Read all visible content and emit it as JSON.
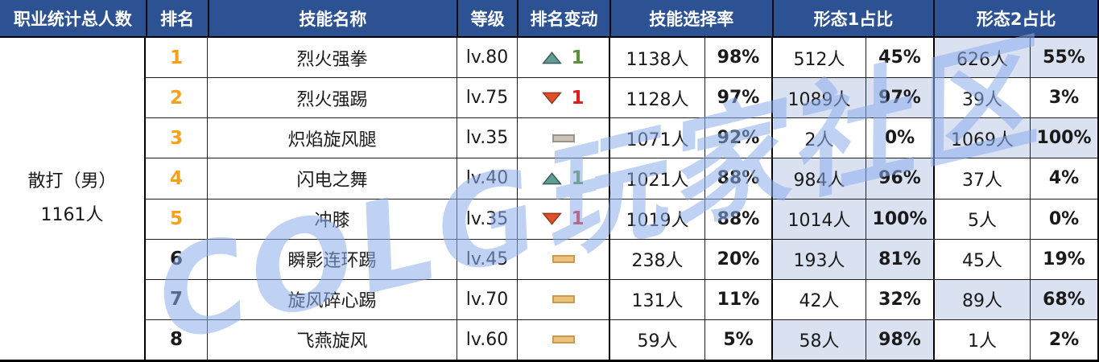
{
  "colors": {
    "header_bg": "#2d5293",
    "header_text": "#ffffff",
    "text": "#1a1a1a",
    "rank_orange": "#f9a01b",
    "highlight_bg": "#dae1f1",
    "up_fill": "#5f9e92",
    "up_stroke": "#3d5a63",
    "down_fill": "#e04f2a",
    "down_stroke": "#8f3c23",
    "flat_fill": "#eac47f",
    "flat_border": "#cd9a4a",
    "flat_grey_fill": "#cdc4b8",
    "flat_grey_border": "#9a958c",
    "green": "#5d8f3c",
    "red": "#e01e1e",
    "watermark": "#8caeec"
  },
  "watermark": "COLG玩家社区",
  "left": {
    "header": "职业统计总人数",
    "class_name": "散打（男）",
    "total": "1161人"
  },
  "header": {
    "rank": "排名",
    "skill": "技能名称",
    "level": "等级",
    "change": "排名变动",
    "selection": "技能选择率",
    "form1": "形态1占比",
    "form2": "形态2占比"
  },
  "chart_data": {
    "type": "table",
    "title": "职业统计总人数 散打（男）1161人 技能选择率统计",
    "columns": [
      "排名",
      "技能名称",
      "等级",
      "排名变动",
      "技能选择率人数",
      "技能选择率%",
      "形态1人数",
      "形态1占比%",
      "形态2人数",
      "形态2占比%"
    ],
    "rows": [
      {
        "rank": "1",
        "rank_orange": true,
        "skill": "烈火强拳",
        "level": "lv.80",
        "change_dir": "up",
        "change_amount": "1",
        "change_variant": "",
        "sel_count": "1138人",
        "sel_pct": "98%",
        "form1_count": "512人",
        "form1_pct": "45%",
        "form1_highlight": false,
        "form2_count": "626人",
        "form2_pct": "55%",
        "form2_highlight": true
      },
      {
        "rank": "2",
        "rank_orange": true,
        "skill": "烈火强踢",
        "level": "lv.75",
        "change_dir": "down",
        "change_amount": "1",
        "change_variant": "",
        "sel_count": "1128人",
        "sel_pct": "97%",
        "form1_count": "1089人",
        "form1_pct": "97%",
        "form1_highlight": true,
        "form2_count": "39人",
        "form2_pct": "3%",
        "form2_highlight": false
      },
      {
        "rank": "3",
        "rank_orange": true,
        "skill": "炽焰旋风腿",
        "level": "lv.35",
        "change_dir": "same",
        "change_amount": "",
        "change_variant": "grey",
        "sel_count": "1071人",
        "sel_pct": "92%",
        "form1_count": "2人",
        "form1_pct": "0%",
        "form1_highlight": false,
        "form2_count": "1069人",
        "form2_pct": "100%",
        "form2_highlight": true
      },
      {
        "rank": "4",
        "rank_orange": true,
        "skill": "闪电之舞",
        "level": "lv.40",
        "change_dir": "up",
        "change_amount": "1",
        "change_variant": "",
        "sel_count": "1021人",
        "sel_pct": "88%",
        "form1_count": "984人",
        "form1_pct": "96%",
        "form1_highlight": true,
        "form2_count": "37人",
        "form2_pct": "4%",
        "form2_highlight": false
      },
      {
        "rank": "5",
        "rank_orange": true,
        "skill": "冲膝",
        "level": "lv.35",
        "change_dir": "down",
        "change_amount": "1",
        "change_variant": "",
        "sel_count": "1019人",
        "sel_pct": "88%",
        "form1_count": "1014人",
        "form1_pct": "100%",
        "form1_highlight": true,
        "form2_count": "5人",
        "form2_pct": "0%",
        "form2_highlight": false
      },
      {
        "rank": "6",
        "rank_orange": false,
        "skill": "瞬影连环踢",
        "level": "lv.45",
        "change_dir": "same",
        "change_amount": "",
        "change_variant": "",
        "sel_count": "238人",
        "sel_pct": "20%",
        "form1_count": "193人",
        "form1_pct": "81%",
        "form1_highlight": true,
        "form2_count": "45人",
        "form2_pct": "19%",
        "form2_highlight": false
      },
      {
        "rank": "7",
        "rank_orange": false,
        "skill": "旋风碎心踢",
        "level": "lv.70",
        "change_dir": "same",
        "change_amount": "",
        "change_variant": "",
        "sel_count": "131人",
        "sel_pct": "11%",
        "form1_count": "42人",
        "form1_pct": "32%",
        "form1_highlight": false,
        "form2_count": "89人",
        "form2_pct": "68%",
        "form2_highlight": true
      },
      {
        "rank": "8",
        "rank_orange": false,
        "skill": "飞燕旋风",
        "level": "lv.60",
        "change_dir": "same",
        "change_amount": "",
        "change_variant": "",
        "sel_count": "59人",
        "sel_pct": "5%",
        "form1_count": "58人",
        "form1_pct": "98%",
        "form1_highlight": true,
        "form2_count": "1人",
        "form2_pct": "2%",
        "form2_highlight": false
      }
    ]
  }
}
